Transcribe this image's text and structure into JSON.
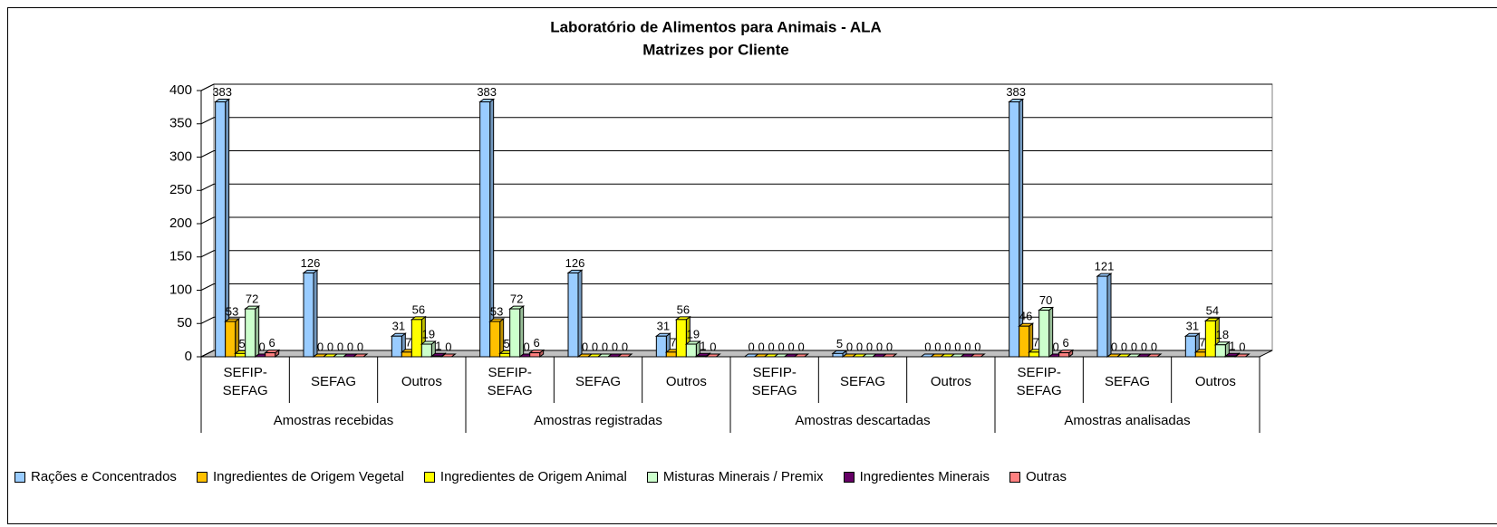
{
  "chart_data": {
    "type": "bar",
    "title": "Laboratório de Alimentos para Animais - ALA",
    "subtitle": "Matrizes por Cliente",
    "groups": [
      "Amostras recebidas",
      "Amostras registradas",
      "Amostras descartadas",
      "Amostras analisadas"
    ],
    "categories": [
      "SEFIP-SEFAG",
      "SEFAG",
      "Outros",
      "SEFIP-SEFAG",
      "SEFAG",
      "Outros",
      "SEFIP-SEFAG",
      "SEFAG",
      "Outros",
      "SEFIP-SEFAG",
      "SEFAG",
      "Outros"
    ],
    "series": [
      {
        "name": "Rações e Concentrados",
        "color": "#99ccff",
        "values": [
          383,
          126,
          31,
          383,
          126,
          31,
          0,
          5,
          0,
          383,
          121,
          31
        ]
      },
      {
        "name": "Ingredientes de Origem Vegetal",
        "color": "#ffc000",
        "values": [
          53,
          0,
          7,
          53,
          0,
          7,
          0,
          0,
          0,
          46,
          0,
          7
        ]
      },
      {
        "name": "Ingredientes de Origem Animal",
        "color": "#ffff00",
        "values": [
          5,
          0,
          56,
          5,
          0,
          56,
          0,
          0,
          0,
          7,
          0,
          54
        ]
      },
      {
        "name": "Misturas Minerais / Premix",
        "color": "#ccffcc",
        "values": [
          72,
          0,
          19,
          72,
          0,
          19,
          0,
          0,
          0,
          70,
          0,
          18
        ]
      },
      {
        "name": "Ingredientes Minerais",
        "color": "#660066",
        "values": [
          0,
          0,
          1,
          0,
          0,
          1,
          0,
          0,
          0,
          0,
          0,
          1
        ]
      },
      {
        "name": "Outras",
        "color": "#ff8080",
        "values": [
          6,
          0,
          0,
          6,
          0,
          0,
          0,
          0,
          0,
          6,
          0,
          0
        ]
      }
    ],
    "ylim": [
      0,
      400
    ],
    "yticks": [
      0,
      50,
      100,
      150,
      200,
      250,
      300,
      350,
      400
    ],
    "grid": true
  }
}
